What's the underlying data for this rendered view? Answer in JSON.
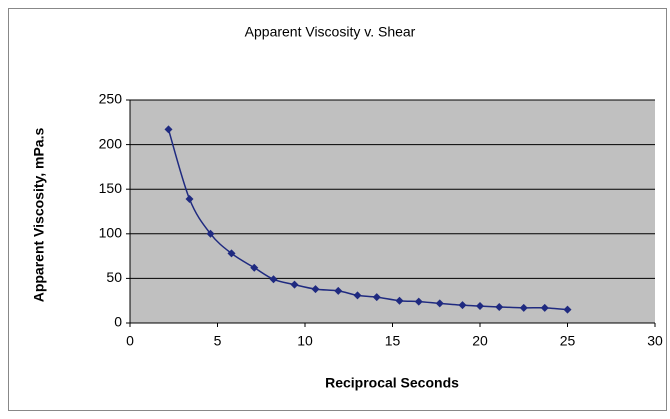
{
  "chart_data": {
    "type": "line",
    "title": "Apparent Viscosity v. Shear",
    "x_label": "Reciprocal Seconds",
    "y_label": "Apparent Viscosity, mPa.s",
    "x": [
      2.2,
      3.4,
      4.6,
      5.8,
      7.1,
      8.2,
      9.4,
      10.6,
      11.9,
      13.0,
      14.1,
      15.4,
      16.5,
      17.7,
      19.0,
      20.0,
      21.1,
      22.5,
      23.7,
      25.0
    ],
    "series": [
      {
        "name": "Apparent Viscosity",
        "color": "#1f2a80",
        "values": [
          217,
          139,
          100,
          78,
          62,
          49,
          43,
          38,
          36,
          31,
          29,
          25,
          24,
          22,
          20,
          19,
          18,
          17,
          17,
          15
        ]
      }
    ],
    "xlim": [
      0,
      30
    ],
    "xticks": [
      0,
      5,
      10,
      15,
      20,
      25,
      30
    ],
    "ylim": [
      0,
      250
    ],
    "yticks": [
      0,
      50,
      100,
      150,
      200,
      250
    ],
    "grid": true,
    "smooth": true
  }
}
